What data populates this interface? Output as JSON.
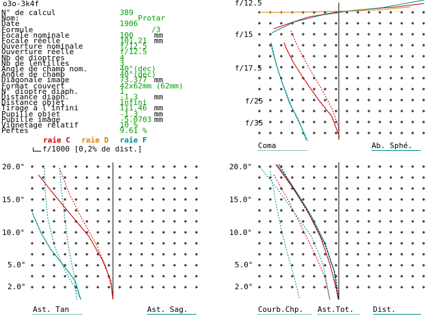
{
  "window_title": "o3o-3k4f",
  "params": [
    {
      "label": "N° de calcul",
      "value": "389",
      "unit": ""
    },
    {
      "label": "Nom:",
      "value": "    Protar",
      "unit": ""
    },
    {
      "label": "Date",
      "value": "1906",
      "unit": ""
    },
    {
      "label": "Formule",
      "value": "       /3",
      "unit": ""
    },
    {
      "label": "Focale nominale",
      "value": "100",
      "unit": "mm"
    },
    {
      "label": "Focale réelle",
      "value": "101.21",
      "unit": "mm"
    },
    {
      "label": "Ouverture nominale",
      "value": "f/12.5",
      "unit": ""
    },
    {
      "label": "Ouverture réelle",
      "value": "f/12.5",
      "unit": ""
    },
    {
      "label": "Nb de dioptres",
      "value": "4",
      "unit": ""
    },
    {
      "label": "Nb de lentilles",
      "value": "3",
      "unit": ""
    },
    {
      "label": "Angle de champ nom.",
      "value": "40°(dec)",
      "unit": ""
    },
    {
      "label": "Angle de champ",
      "value": "40°(dec)",
      "unit": ""
    },
    {
      "label": "Diagonale image",
      "value": "73.377",
      "unit": "mm"
    },
    {
      "label": "Format couvert",
      "value": "42x62mm (62mm)",
      "unit": ""
    },
    {
      "label": "N° dioptre diaph.",
      "value": "1",
      "unit": ""
    },
    {
      "label": "Distance diaph.",
      "value": "-1.3",
      "unit": "mm"
    },
    {
      "label": "Distance objet",
      "value": "Infini",
      "unit": ""
    },
    {
      "label": "Tirage à l'infini",
      "value": "111.46",
      "unit": "mm"
    },
    {
      "label": "Pupille objet",
      "value": "-1.3",
      "unit": "mm"
    },
    {
      "label": "Pupille image",
      "value": "-5.0703",
      "unit": "mm"
    },
    {
      "label": "Vignetage relatif",
      "value": "10 %",
      "unit": ""
    },
    {
      "label": "Pertes",
      "value": "9.61 %",
      "unit": ""
    }
  ],
  "legend": {
    "raie_c": "raie C",
    "raie_d": "raie D",
    "raie_f": "raie F",
    "scale_note": "f/1000 [0,2% de dist.]"
  },
  "colors": {
    "raie_c": "#d00000",
    "raie_d": "#e08000",
    "raie_f": "#008c8c",
    "values": "#00a000"
  },
  "panels": {
    "top_right": {
      "y_labels": [
        "f/12.5",
        "f/15",
        "f/17.5",
        "f/25",
        "f/35"
      ],
      "left_title": "Coma",
      "right_title": "Ab. Sphé."
    },
    "bottom_left": {
      "y_labels": [
        "20.0°",
        "15.0°",
        "10.0°",
        "5.0°",
        "2.0°"
      ],
      "left_title": "Ast. Tan",
      "right_title": "Ast. Sag."
    },
    "bottom_right": {
      "y_labels": [
        "20.0°",
        "15.0°",
        "10.0°",
        "5.0°",
        "2.0°"
      ],
      "left_title": "Courb.Chp.",
      "mid_title": "Ast.Tot.",
      "right_title": "Dist."
    }
  }
}
